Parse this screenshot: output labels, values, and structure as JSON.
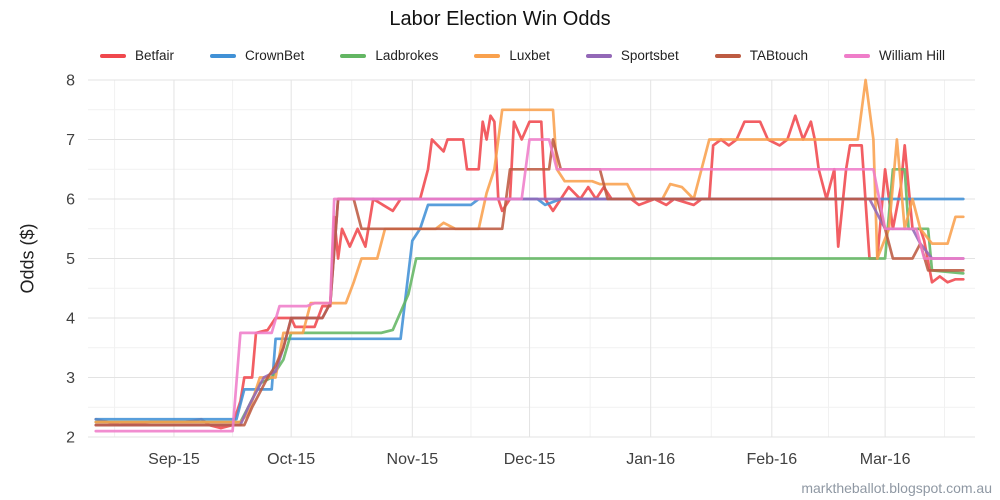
{
  "watermark": "marktheballot.blogspot.com.au",
  "chart_data": {
    "type": "line",
    "title": "Labor Election Win Odds",
    "xlabel": "",
    "ylabel": "Odds ($)",
    "ylim": [
      2,
      8
    ],
    "yticks": [
      2,
      3,
      4,
      5,
      6,
      7,
      8
    ],
    "x_range": [
      "2015-08-10",
      "2016-03-24"
    ],
    "xticks": [
      {
        "date": "2015-09-01",
        "label": "Sep-15"
      },
      {
        "date": "2015-10-01",
        "label": "Oct-15"
      },
      {
        "date": "2015-11-01",
        "label": "Nov-15"
      },
      {
        "date": "2015-12-01",
        "label": "Dec-15"
      },
      {
        "date": "2016-01-01",
        "label": "Jan-16"
      },
      {
        "date": "2016-02-01",
        "label": "Feb-16"
      },
      {
        "date": "2016-03-01",
        "label": "Mar-16"
      }
    ],
    "grid": true,
    "legend_position": "top",
    "series": [
      {
        "name": "Betfair",
        "color": "#f0484d",
        "points": [
          [
            "2015-08-12",
            2.3
          ],
          [
            "2015-08-18",
            2.2
          ],
          [
            "2015-08-26",
            2.25
          ],
          [
            "2015-09-04",
            2.25
          ],
          [
            "2015-09-08",
            2.3
          ],
          [
            "2015-09-10",
            2.2
          ],
          [
            "2015-09-13",
            2.15
          ],
          [
            "2015-09-16",
            2.2
          ],
          [
            "2015-09-18",
            2.6
          ],
          [
            "2015-09-19",
            3.0
          ],
          [
            "2015-09-21",
            3.0
          ],
          [
            "2015-09-22",
            3.75
          ],
          [
            "2015-09-25",
            3.8
          ],
          [
            "2015-09-27",
            4.0
          ],
          [
            "2015-10-01",
            4.0
          ],
          [
            "2015-10-02",
            3.85
          ],
          [
            "2015-10-07",
            3.85
          ],
          [
            "2015-10-09",
            4.2
          ],
          [
            "2015-10-11",
            4.2
          ],
          [
            "2015-10-12",
            5.7
          ],
          [
            "2015-10-13",
            5.0
          ],
          [
            "2015-10-14",
            5.5
          ],
          [
            "2015-10-16",
            5.2
          ],
          [
            "2015-10-18",
            5.5
          ],
          [
            "2015-10-20",
            5.2
          ],
          [
            "2015-10-22",
            6.0
          ],
          [
            "2015-10-27",
            5.8
          ],
          [
            "2015-10-29",
            6.0
          ],
          [
            "2015-11-03",
            6.0
          ],
          [
            "2015-11-05",
            6.5
          ],
          [
            "2015-11-06",
            7.0
          ],
          [
            "2015-11-09",
            6.8
          ],
          [
            "2015-11-10",
            7.0
          ],
          [
            "2015-11-14",
            7.0
          ],
          [
            "2015-11-15",
            6.5
          ],
          [
            "2015-11-18",
            6.5
          ],
          [
            "2015-11-19",
            7.3
          ],
          [
            "2015-11-20",
            7.0
          ],
          [
            "2015-11-21",
            7.4
          ],
          [
            "2015-11-22",
            7.3
          ],
          [
            "2015-11-23",
            6.0
          ],
          [
            "2015-11-24",
            5.8
          ],
          [
            "2015-11-26",
            6.0
          ],
          [
            "2015-11-27",
            7.3
          ],
          [
            "2015-11-29",
            7.0
          ],
          [
            "2015-12-01",
            7.3
          ],
          [
            "2015-12-04",
            7.3
          ],
          [
            "2015-12-05",
            6.0
          ],
          [
            "2015-12-07",
            5.8
          ],
          [
            "2015-12-09",
            6.0
          ],
          [
            "2015-12-11",
            6.2
          ],
          [
            "2015-12-14",
            6.0
          ],
          [
            "2015-12-16",
            6.2
          ],
          [
            "2015-12-18",
            6.0
          ],
          [
            "2015-12-20",
            6.2
          ],
          [
            "2015-12-22",
            6.0
          ],
          [
            "2015-12-27",
            6.0
          ],
          [
            "2015-12-29",
            5.9
          ],
          [
            "2016-01-02",
            6.0
          ],
          [
            "2016-01-05",
            5.9
          ],
          [
            "2016-01-07",
            6.0
          ],
          [
            "2016-01-12",
            5.9
          ],
          [
            "2016-01-14",
            6.0
          ],
          [
            "2016-01-16",
            6.0
          ],
          [
            "2016-01-17",
            6.9
          ],
          [
            "2016-01-19",
            7.0
          ],
          [
            "2016-01-21",
            6.9
          ],
          [
            "2016-01-23",
            7.0
          ],
          [
            "2016-01-25",
            7.3
          ],
          [
            "2016-01-29",
            7.3
          ],
          [
            "2016-01-31",
            7.0
          ],
          [
            "2016-02-03",
            6.9
          ],
          [
            "2016-02-05",
            7.0
          ],
          [
            "2016-02-07",
            7.4
          ],
          [
            "2016-02-09",
            7.0
          ],
          [
            "2016-02-11",
            7.3
          ],
          [
            "2016-02-12",
            7.0
          ],
          [
            "2016-02-13",
            6.5
          ],
          [
            "2016-02-15",
            6.0
          ],
          [
            "2016-02-17",
            6.5
          ],
          [
            "2016-02-18",
            5.2
          ],
          [
            "2016-02-20",
            6.5
          ],
          [
            "2016-02-21",
            6.9
          ],
          [
            "2016-02-24",
            6.9
          ],
          [
            "2016-02-26",
            5.0
          ],
          [
            "2016-02-28",
            5.0
          ],
          [
            "2016-03-01",
            6.5
          ],
          [
            "2016-03-03",
            5.5
          ],
          [
            "2016-03-05",
            6.2
          ],
          [
            "2016-03-06",
            6.9
          ],
          [
            "2016-03-08",
            5.5
          ],
          [
            "2016-03-10",
            5.5
          ],
          [
            "2016-03-11",
            5.3
          ],
          [
            "2016-03-13",
            4.6
          ],
          [
            "2016-03-15",
            4.7
          ],
          [
            "2016-03-17",
            4.6
          ],
          [
            "2016-03-19",
            4.65
          ],
          [
            "2016-03-21",
            4.65
          ]
        ]
      },
      {
        "name": "CrownBet",
        "color": "#4191d6",
        "points": [
          [
            "2015-08-12",
            2.3
          ],
          [
            "2015-09-17",
            2.3
          ],
          [
            "2015-09-19",
            2.8
          ],
          [
            "2015-09-26",
            2.8
          ],
          [
            "2015-09-27",
            3.65
          ],
          [
            "2015-10-29",
            3.65
          ],
          [
            "2015-11-01",
            5.3
          ],
          [
            "2015-11-03",
            5.5
          ],
          [
            "2015-11-05",
            5.9
          ],
          [
            "2015-11-16",
            5.9
          ],
          [
            "2015-11-18",
            6.0
          ],
          [
            "2015-12-03",
            6.0
          ],
          [
            "2015-12-05",
            5.9
          ],
          [
            "2015-12-09",
            6.0
          ],
          [
            "2016-03-21",
            6.0
          ]
        ]
      },
      {
        "name": "Ladbrokes",
        "color": "#63b663",
        "points": [
          [
            "2015-08-12",
            2.25
          ],
          [
            "2015-09-18",
            2.25
          ],
          [
            "2015-09-20",
            2.5
          ],
          [
            "2015-09-23",
            2.9
          ],
          [
            "2015-09-26",
            3.0
          ],
          [
            "2015-09-29",
            3.3
          ],
          [
            "2015-10-01",
            3.75
          ],
          [
            "2015-10-24",
            3.75
          ],
          [
            "2015-10-27",
            3.8
          ],
          [
            "2015-10-31",
            4.4
          ],
          [
            "2015-11-02",
            5.0
          ],
          [
            "2016-03-01",
            5.0
          ],
          [
            "2016-03-03",
            6.5
          ],
          [
            "2016-03-06",
            6.5
          ],
          [
            "2016-03-07",
            5.5
          ],
          [
            "2016-03-12",
            5.5
          ],
          [
            "2016-03-13",
            4.8
          ],
          [
            "2016-03-21",
            4.75
          ]
        ]
      },
      {
        "name": "Luxbet",
        "color": "#f9a14d",
        "points": [
          [
            "2015-08-12",
            2.25
          ],
          [
            "2015-09-18",
            2.25
          ],
          [
            "2015-09-20",
            2.4
          ],
          [
            "2015-09-23",
            3.0
          ],
          [
            "2015-09-27",
            3.0
          ],
          [
            "2015-09-29",
            3.75
          ],
          [
            "2015-10-04",
            3.75
          ],
          [
            "2015-10-06",
            4.25
          ],
          [
            "2015-10-15",
            4.25
          ],
          [
            "2015-10-17",
            4.6
          ],
          [
            "2015-10-19",
            5.0
          ],
          [
            "2015-10-23",
            5.0
          ],
          [
            "2015-10-25",
            5.5
          ],
          [
            "2015-11-07",
            5.5
          ],
          [
            "2015-11-09",
            5.6
          ],
          [
            "2015-11-12",
            5.5
          ],
          [
            "2015-11-18",
            5.5
          ],
          [
            "2015-11-20",
            6.1
          ],
          [
            "2015-11-22",
            6.5
          ],
          [
            "2015-11-24",
            7.5
          ],
          [
            "2015-12-07",
            7.5
          ],
          [
            "2015-12-08",
            6.5
          ],
          [
            "2015-12-10",
            6.3
          ],
          [
            "2015-12-17",
            6.3
          ],
          [
            "2015-12-19",
            6.25
          ],
          [
            "2015-12-26",
            6.25
          ],
          [
            "2015-12-28",
            6.0
          ],
          [
            "2016-01-04",
            6.0
          ],
          [
            "2016-01-06",
            6.25
          ],
          [
            "2016-01-09",
            6.2
          ],
          [
            "2016-01-12",
            6.0
          ],
          [
            "2016-01-14",
            6.5
          ],
          [
            "2016-01-16",
            7.0
          ],
          [
            "2016-02-23",
            7.0
          ],
          [
            "2016-02-25",
            8.0
          ],
          [
            "2016-02-27",
            7.0
          ],
          [
            "2016-02-28",
            5.0
          ],
          [
            "2016-03-02",
            5.5
          ],
          [
            "2016-03-04",
            7.0
          ],
          [
            "2016-03-06",
            5.5
          ],
          [
            "2016-03-08",
            6.0
          ],
          [
            "2016-03-10",
            5.5
          ],
          [
            "2016-03-13",
            5.25
          ],
          [
            "2016-03-17",
            5.25
          ],
          [
            "2016-03-19",
            5.7
          ],
          [
            "2016-03-21",
            5.7
          ]
        ]
      },
      {
        "name": "Sportsbet",
        "color": "#9368b7",
        "points": [
          [
            "2015-08-12",
            2.2
          ],
          [
            "2015-09-18",
            2.2
          ],
          [
            "2015-09-20",
            2.5
          ],
          [
            "2015-09-24",
            3.0
          ],
          [
            "2015-09-27",
            3.1
          ],
          [
            "2015-09-29",
            3.5
          ],
          [
            "2015-10-01",
            4.0
          ],
          [
            "2015-10-09",
            4.0
          ],
          [
            "2015-10-11",
            4.25
          ],
          [
            "2015-10-13",
            6.0
          ],
          [
            "2016-02-26",
            6.0
          ],
          [
            "2016-03-01",
            5.5
          ],
          [
            "2016-03-08",
            5.5
          ],
          [
            "2016-03-10",
            5.25
          ],
          [
            "2016-03-13",
            5.0
          ],
          [
            "2016-03-21",
            5.0
          ]
        ]
      },
      {
        "name": "TABtouch",
        "color": "#bd5b42",
        "points": [
          [
            "2015-08-12",
            2.2
          ],
          [
            "2015-09-19",
            2.2
          ],
          [
            "2015-09-21",
            2.5
          ],
          [
            "2015-09-25",
            3.0
          ],
          [
            "2015-09-27",
            3.2
          ],
          [
            "2015-09-29",
            3.5
          ],
          [
            "2015-10-01",
            4.0
          ],
          [
            "2015-10-09",
            4.0
          ],
          [
            "2015-10-11",
            4.25
          ],
          [
            "2015-10-13",
            6.0
          ],
          [
            "2015-10-17",
            6.0
          ],
          [
            "2015-10-19",
            5.5
          ],
          [
            "2015-11-24",
            5.5
          ],
          [
            "2015-11-26",
            6.5
          ],
          [
            "2015-12-06",
            6.5
          ],
          [
            "2015-12-07",
            7.0
          ],
          [
            "2015-12-09",
            6.5
          ],
          [
            "2015-12-19",
            6.5
          ],
          [
            "2015-12-21",
            6.0
          ],
          [
            "2016-02-28",
            6.0
          ],
          [
            "2016-03-03",
            5.0
          ],
          [
            "2016-03-08",
            5.0
          ],
          [
            "2016-03-10",
            5.25
          ],
          [
            "2016-03-12",
            4.8
          ],
          [
            "2016-03-21",
            4.8
          ]
        ]
      },
      {
        "name": "William Hill",
        "color": "#ef7dc9",
        "points": [
          [
            "2015-08-12",
            2.1
          ],
          [
            "2015-09-16",
            2.1
          ],
          [
            "2015-09-18",
            3.75
          ],
          [
            "2015-09-26",
            3.75
          ],
          [
            "2015-09-28",
            4.2
          ],
          [
            "2015-10-05",
            4.2
          ],
          [
            "2015-10-07",
            4.25
          ],
          [
            "2015-10-11",
            4.25
          ],
          [
            "2015-10-12",
            6.0
          ],
          [
            "2015-11-29",
            6.0
          ],
          [
            "2015-12-01",
            7.0
          ],
          [
            "2015-12-06",
            7.0
          ],
          [
            "2015-12-08",
            6.5
          ],
          [
            "2016-02-27",
            6.5
          ],
          [
            "2016-03-01",
            5.5
          ],
          [
            "2016-03-09",
            5.5
          ],
          [
            "2016-03-11",
            5.0
          ],
          [
            "2016-03-21",
            5.0
          ]
        ]
      }
    ]
  }
}
